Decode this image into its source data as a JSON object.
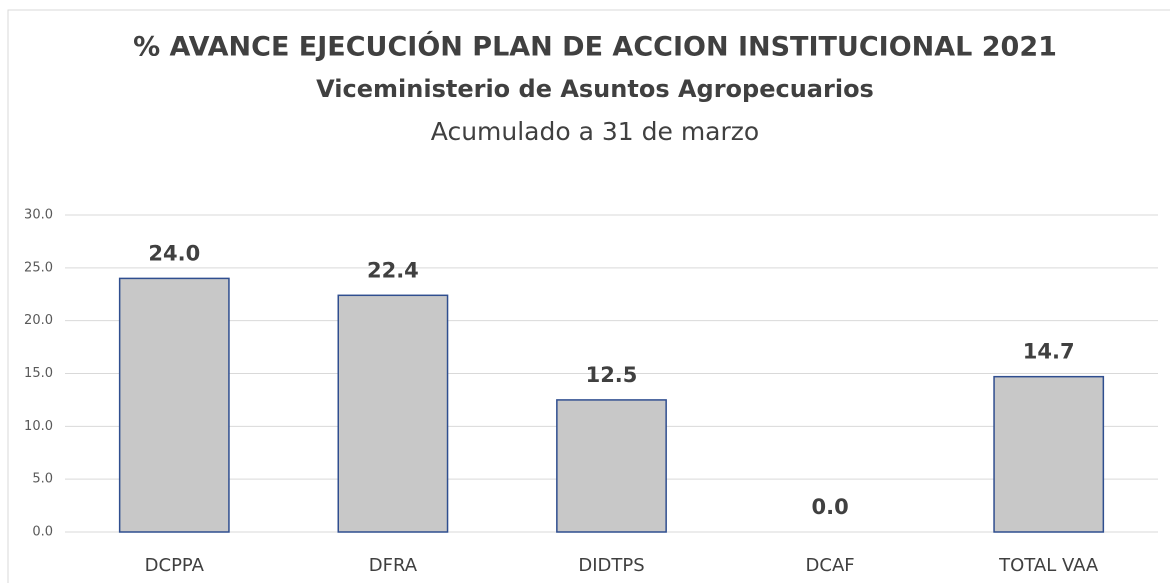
{
  "chart_data": {
    "type": "bar",
    "title": "% AVANCE EJECUCIÓN PLAN DE ACCION INSTITUCIONAL 2021",
    "subtitle": [
      "Viceministerio de Asuntos Agropecuarios",
      "Acumulado a 31 de marzo"
    ],
    "categories": [
      "DCPPA",
      "DFRA",
      "DIDTPS",
      "DCAF",
      "TOTAL VAA"
    ],
    "values": [
      24.0,
      22.4,
      12.5,
      0.0,
      14.7
    ],
    "value_labels": [
      "24.0",
      "22.4",
      "12.5",
      "0.0",
      "14.7"
    ],
    "color": "#c8c8c8",
    "ylim": [
      0,
      30
    ],
    "yticks": [
      {
        "value": 0,
        "label": "0.0"
      },
      {
        "value": 5,
        "label": "5.0"
      },
      {
        "value": 10,
        "label": "10.0"
      },
      {
        "value": 15,
        "label": "15.0"
      },
      {
        "value": 20,
        "label": "20.0"
      },
      {
        "value": 25,
        "label": "25.0"
      },
      {
        "value": 30,
        "label": "30.0"
      }
    ],
    "grid": true
  }
}
